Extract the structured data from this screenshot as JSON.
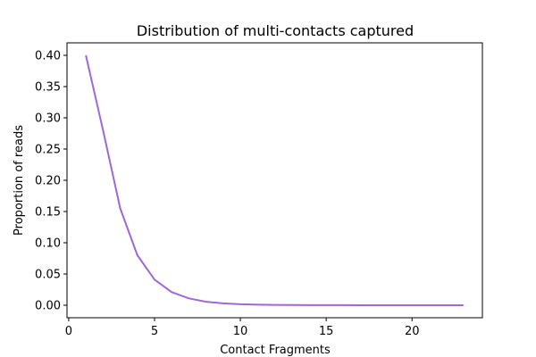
{
  "chart_data": {
    "type": "line",
    "title": "Distribution of multi-contacts captured",
    "xlabel": "Contact Fragments",
    "ylabel": "Proportion of reads",
    "xlim": [
      -0.1,
      24.1
    ],
    "ylim": [
      -0.02,
      0.42
    ],
    "xticks": [
      0,
      5,
      10,
      15,
      20
    ],
    "xtick_labels": [
      "0",
      "5",
      "10",
      "15",
      "20"
    ],
    "yticks": [
      0.0,
      0.05,
      0.1,
      0.15,
      0.2,
      0.25,
      0.3,
      0.35,
      0.4
    ],
    "ytick_labels": [
      "0.00",
      "0.05",
      "0.10",
      "0.15",
      "0.20",
      "0.25",
      "0.30",
      "0.35",
      "0.40"
    ],
    "grid": false,
    "legend": "none",
    "series": [
      {
        "color": "#a067d6",
        "x": [
          1,
          2,
          3,
          4,
          5,
          6,
          7,
          8,
          9,
          10,
          11,
          12,
          13,
          14,
          15,
          16,
          17,
          18,
          19,
          20,
          21,
          22,
          23
        ],
        "y": [
          0.4,
          0.28,
          0.155,
          0.08,
          0.041,
          0.021,
          0.011,
          0.0055,
          0.003,
          0.0016,
          0.0009,
          0.0005,
          0.0003,
          0.0002,
          0.0001,
          0.0001,
          0.0,
          0.0,
          0.0,
          0.0,
          0.0,
          0.0,
          0.0
        ]
      }
    ]
  }
}
